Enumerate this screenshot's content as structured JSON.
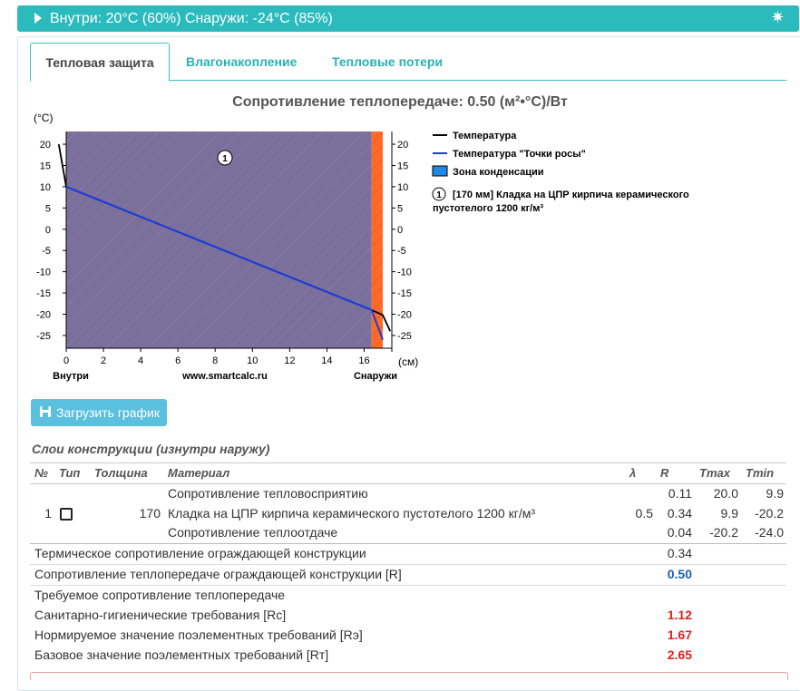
{
  "topbar": {
    "title": "Внутри: 20°C (60%) Снаружи: -24°C (85%)",
    "gear_icon": "gear-icon"
  },
  "tabs": [
    {
      "label": "Тепловая защита",
      "active": true
    },
    {
      "label": "Влагонакопление",
      "active": false
    },
    {
      "label": "Тепловые потери",
      "active": false
    }
  ],
  "chart_title": "Сопротивление теплопередаче: 0.50 (м²•°С)/Вт",
  "chart_data": {
    "type": "line",
    "ylabel": "(°С)",
    "xlabel": "(см)",
    "x_ticks": [
      "0",
      "2",
      "4",
      "6",
      "8",
      "10",
      "12",
      "14",
      "16"
    ],
    "y_ticks": [
      "20",
      "15",
      "10",
      "5",
      "0",
      "-5",
      "-10",
      "-15",
      "-20",
      "-25"
    ],
    "xlim": [
      0,
      17
    ],
    "ylim": [
      -28,
      23
    ],
    "inside_label": "Внутри",
    "outside_label": "Снаружи",
    "watermark": "www.smartcalc.ru",
    "layer_marker": "1",
    "condensation_zone": [
      16.4,
      17.0
    ],
    "series": [
      {
        "name": "Температура",
        "color": "#000000",
        "points": [
          [
            -0.4,
            20
          ],
          [
            0,
            10
          ],
          [
            16.4,
            -19.0
          ],
          [
            17.0,
            -20.2
          ],
          [
            17.4,
            -24
          ]
        ]
      },
      {
        "name": "Температура \"Точки росы\"",
        "color": "#1a3de0",
        "points": [
          [
            0,
            10
          ],
          [
            16.4,
            -19.0
          ],
          [
            17.0,
            -26
          ]
        ]
      }
    ],
    "legend": [
      {
        "label": "Температура",
        "type": "line",
        "color": "#000000"
      },
      {
        "label": "Температура \"Точки росы\"",
        "type": "line",
        "color": "#1a3de0"
      },
      {
        "label": "Зона конденсации",
        "type": "box",
        "color": "#1e88e5"
      },
      {
        "label": "[170 мм] Кладка на ЦПР кирпича керамического пустотелого 1200 кг/м³",
        "type": "marker",
        "marker": "1"
      }
    ]
  },
  "download_button": {
    "label": "Загрузить график",
    "icon": "download-icon"
  },
  "layers_section": {
    "title": "Слои конструкции (изнутри наружу)",
    "headers": {
      "num": "№",
      "type": "Тип",
      "thickness": "Толщина",
      "material": "Материал",
      "lambda": "λ",
      "r": "R",
      "tmax": "Tmax",
      "tmin": "Tmin"
    },
    "rows": [
      {
        "num": "",
        "thickness": "",
        "material": "Сопротивление тепловосприятию",
        "lambda": "",
        "r": "0.11",
        "tmax": "20.0",
        "tmin": "9.9"
      },
      {
        "num": "1",
        "thickness": "170",
        "material": "Кладка на ЦПР кирпича керамического пустотелого 1200 кг/м³",
        "lambda": "0.5",
        "r": "0.34",
        "tmax": "9.9",
        "tmin": "-20.2"
      },
      {
        "num": "",
        "thickness": "",
        "material": "Сопротивление теплоотдаче",
        "lambda": "",
        "r": "0.04",
        "tmax": "-20.2",
        "tmin": "-24.0"
      }
    ],
    "summary": [
      {
        "label": "Термическое сопротивление ограждающей конструкции",
        "value": "0.34",
        "style": "plain"
      },
      {
        "label": "Сопротивление теплопередаче ограждающей конструкции [R]",
        "value": "0.50",
        "style": "blue"
      },
      {
        "label": "Требуемое сопротивление теплопередаче",
        "value": "",
        "style": "plain"
      },
      {
        "label": "Санитарно-гигиенические требования [Rc]",
        "value": "1.12",
        "style": "red"
      },
      {
        "label": "Нормируемое значение поэлементных требований [Rэ]",
        "value": "1.67",
        "style": "red"
      },
      {
        "label": "Базовое значение поэлементных требований [Rт]",
        "value": "2.65",
        "style": "red"
      }
    ]
  }
}
